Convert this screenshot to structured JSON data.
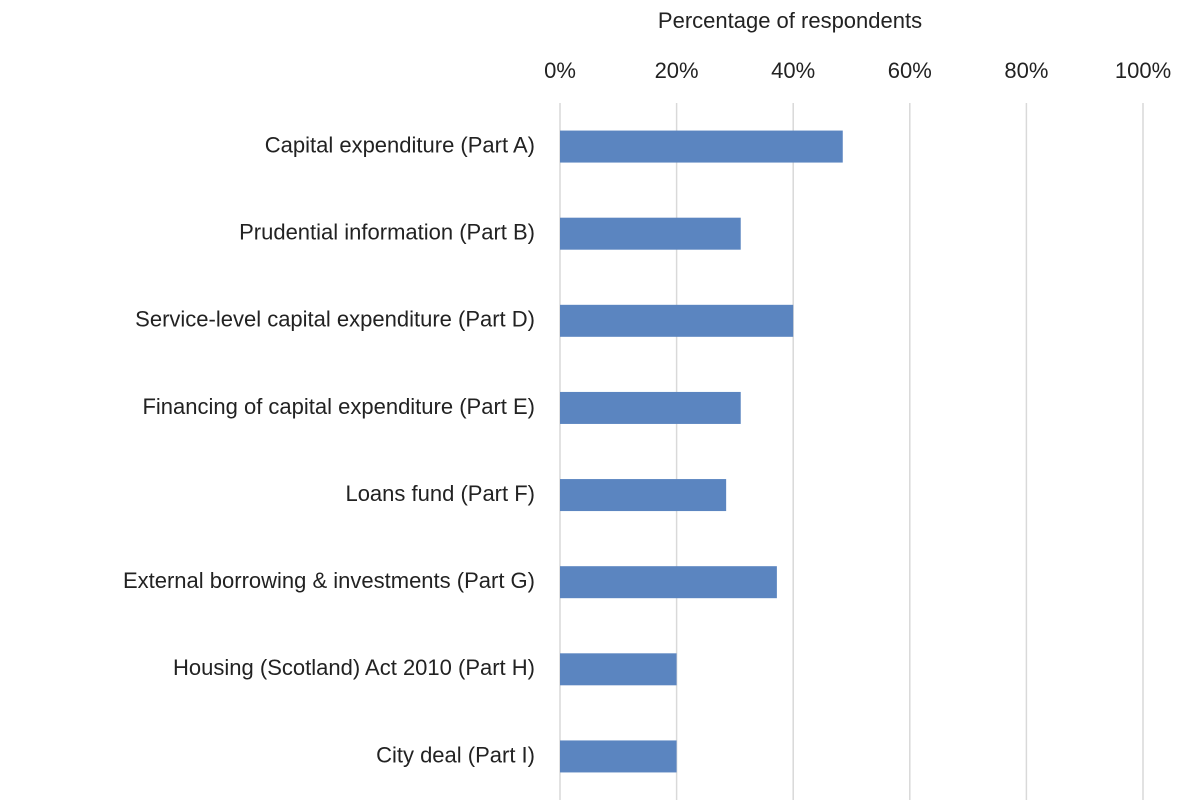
{
  "chart_data": {
    "type": "bar",
    "orientation": "horizontal",
    "x_label": "Percentage of respondents",
    "categories": [
      "Capital expenditure (Part A)",
      "Prudential information (Part B)",
      "Service-level capital expenditure (Part D)",
      "Financing of capital expenditure (Part E)",
      "Loans fund (Part F)",
      "External borrowing & investments (Part G)",
      "Housing (Scotland) Act 2010 (Part H)",
      "City deal (Part I)"
    ],
    "values": [
      48.5,
      31,
      40,
      31,
      28.5,
      37.2,
      20,
      20
    ],
    "color": "#5b85c0",
    "xlim": [
      0,
      100
    ],
    "xticks": [
      {
        "value": 0,
        "label": "0%"
      },
      {
        "value": 20,
        "label": "20%"
      },
      {
        "value": 40,
        "label": "40%"
      },
      {
        "value": 60,
        "label": "60%"
      },
      {
        "value": 80,
        "label": "80%"
      },
      {
        "value": 100,
        "label": "100%"
      }
    ],
    "grid": true
  }
}
